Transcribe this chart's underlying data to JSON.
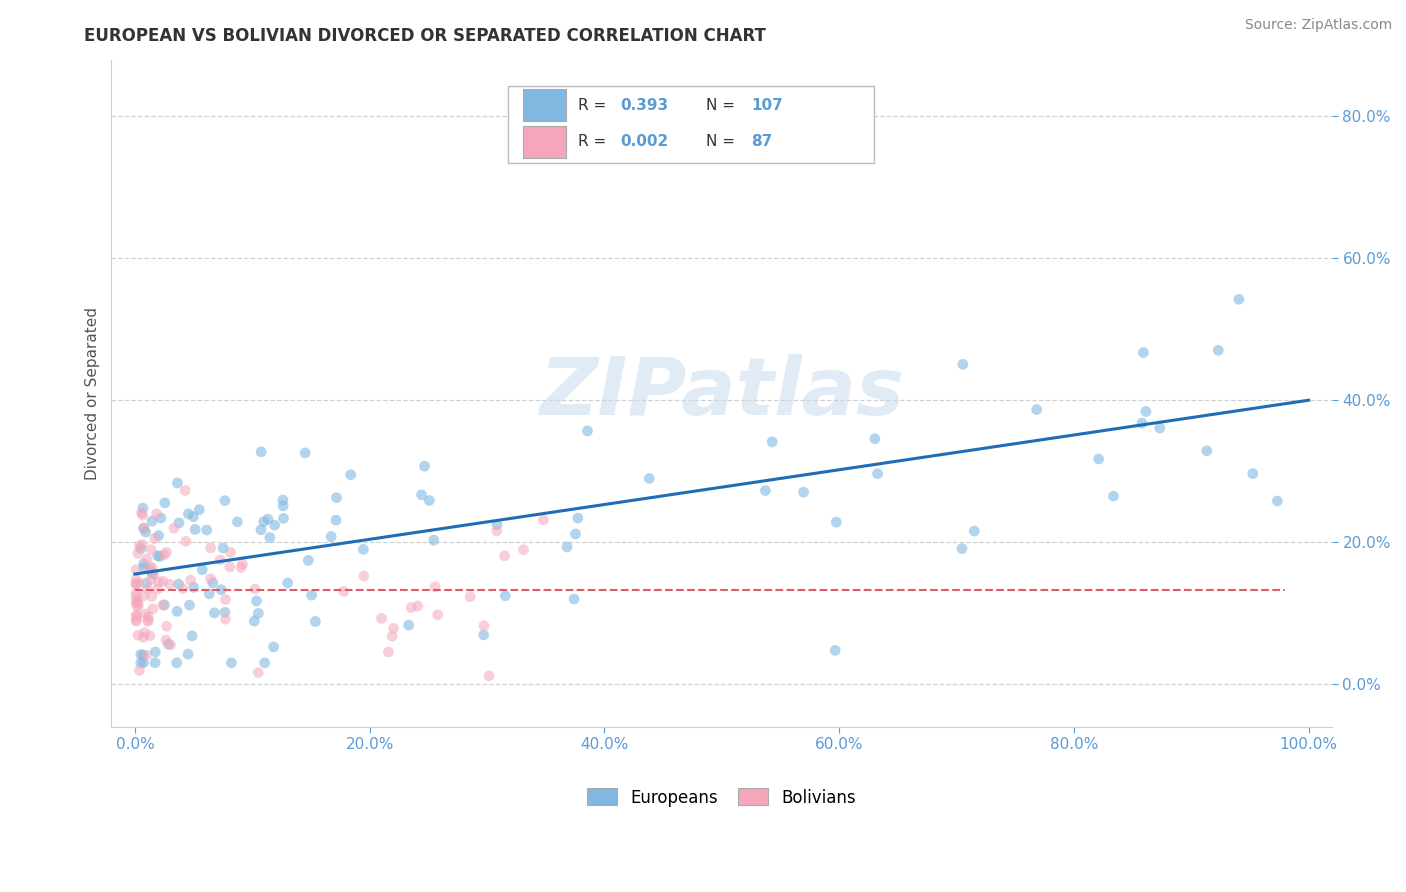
{
  "title": "EUROPEAN VS BOLIVIAN DIVORCED OR SEPARATED CORRELATION CHART",
  "source_text": "Source: ZipAtlas.com",
  "ylabel": "Divorced or Separated",
  "watermark": "ZIPatlas",
  "legend_european": "Europeans",
  "legend_bolivian": "Bolivians",
  "R_european": 0.393,
  "N_european": 107,
  "R_bolivian": 0.002,
  "N_bolivian": 87,
  "xlim": [
    -0.02,
    1.02
  ],
  "ylim": [
    -0.06,
    0.88
  ],
  "x_ticks": [
    0.0,
    0.2,
    0.4,
    0.6,
    0.8,
    1.0
  ],
  "x_tick_labels": [
    "0.0%",
    "20.0%",
    "40.0%",
    "60.0%",
    "80.0%",
    "100.0%"
  ],
  "y_ticks": [
    0.0,
    0.2,
    0.4,
    0.6,
    0.8
  ],
  "y_tick_labels": [
    "0.0%",
    "20.0%",
    "40.0%",
    "60.0%",
    "80.0%"
  ],
  "color_european": "#80b8e0",
  "color_bolivian": "#f4a7bb",
  "color_european_line": "#1f6db5",
  "color_bolivian_line": "#e05a6a",
  "background_color": "#ffffff",
  "grid_color": "#cccccc",
  "tick_color": "#5b9bd5",
  "eu_line_start_y": 0.155,
  "eu_line_end_y": 0.4,
  "bo_line_y": 0.132
}
